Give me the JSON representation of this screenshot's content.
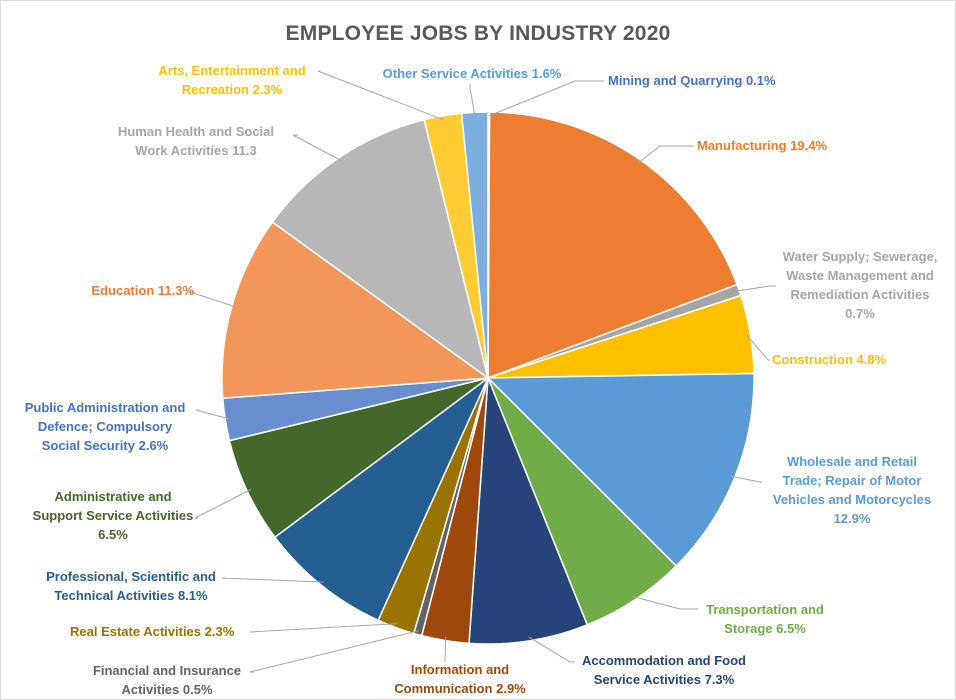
{
  "chart_data": {
    "type": "pie",
    "title": "EMPLOYEE JOBS BY INDUSTRY 2020",
    "unit": "%",
    "slices": [
      {
        "name": "Mining and Quarrying",
        "value": 0.1,
        "label": "Mining and Quarrying 0.1%",
        "color": "#4472c4",
        "label_color": "#4472c4"
      },
      {
        "name": "Manufacturing",
        "value": 19.4,
        "label": "Manufacturing 19.4%",
        "color": "#ed7d31",
        "label_color": "#ed7d31"
      },
      {
        "name": "Water Supply; Sewerage, Waste Management and Remediation Activities",
        "value": 0.7,
        "label": "Water Supply; Sewerage,\nWaste Management and\nRemediation Activities\n0.7%",
        "color": "#a5a5a5",
        "label_color": "#a5a5a5"
      },
      {
        "name": "Construction",
        "value": 4.8,
        "label": "Construction 4.8%",
        "color": "#ffc000",
        "label_color": "#ffc000"
      },
      {
        "name": "Wholesale and Retail Trade; Repair of Motor Vehicles and Motorcycles",
        "value": 12.9,
        "label": "Wholesale and Retail\nTrade; Repair of Motor\nVehicles and Motorcycles\n12.9%",
        "color": "#5b9bd5",
        "label_color": "#5b9bd5"
      },
      {
        "name": "Transportation and Storage",
        "value": 6.5,
        "label": "Transportation and\nStorage 6.5%",
        "color": "#70ad47",
        "label_color": "#70ad47"
      },
      {
        "name": "Accommodation and Food Service Activities",
        "value": 7.3,
        "label": "Accommodation and Food\nService Activities 7.3%",
        "color": "#264478",
        "label_color": "#264478"
      },
      {
        "name": "Information and Communication",
        "value": 2.9,
        "label": "Information and\nCommunication 2.9%",
        "color": "#9e480e",
        "label_color": "#9e480e"
      },
      {
        "name": "Financial and Insurance Activities",
        "value": 0.5,
        "label": "Financial and Insurance\nActivities 0.5%",
        "color": "#636363",
        "label_color": "#636363"
      },
      {
        "name": "Real Estate Activities",
        "value": 2.3,
        "label": "Real Estate Activities 2.3%",
        "color": "#997300",
        "label_color": "#997300"
      },
      {
        "name": "Professional, Scientific and Technical Activities",
        "value": 8.1,
        "label": "Professional, Scientific and\nTechnical Activities 8.1%",
        "color": "#255e91",
        "label_color": "#255e91"
      },
      {
        "name": "Administrative and Support Service Activities",
        "value": 6.5,
        "label": "Administrative and\nSupport Service Activities\n6.5%",
        "color": "#43682b",
        "label_color": "#43682b"
      },
      {
        "name": "Public Administration and Defence; Compulsory Social Security",
        "value": 2.6,
        "label": "Public Administration and\nDefence; Compulsory\nSocial Security 2.6%",
        "color": "#698ed0",
        "label_color": "#4472c4"
      },
      {
        "name": "Education",
        "value": 11.3,
        "label": "Education 11.3%",
        "color": "#f1975a",
        "label_color": "#ed7d31"
      },
      {
        "name": "Human Health and Social Work Activities",
        "value": 11.3,
        "label": "Human Health and Social\nWork Activities 11.3",
        "color": "#b7b7b7",
        "label_color": "#a5a5a5"
      },
      {
        "name": "Arts, Entertainment and Recreation",
        "value": 2.3,
        "label": "Arts, Entertainment and\nRecreation 2.3%",
        "color": "#ffcd33",
        "label_color": "#ffc000"
      },
      {
        "name": "Other Service Activities",
        "value": 1.6,
        "label": "Other Service Activities 1.6%",
        "color": "#7cafdd",
        "label_color": "#5b9bd5"
      }
    ]
  }
}
